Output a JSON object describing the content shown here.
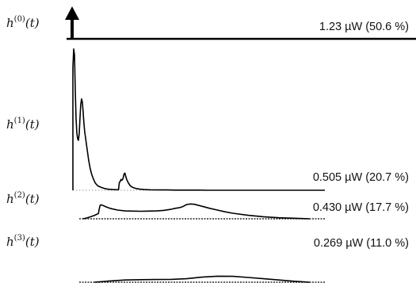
{
  "chart_data": {
    "type": "line",
    "title": "",
    "xlabel": "",
    "ylabel": "",
    "rows": [
      {
        "name": "h(0)(t)",
        "label_main": "h",
        "label_sup": "(0)",
        "label_tail": "(t)",
        "power": "1.23 µW (50.6 %)",
        "kind": "impulse",
        "x": [],
        "y": []
      },
      {
        "name": "h(1)(t)",
        "label_main": "h",
        "label_sup": "(1)",
        "label_tail": "(t)",
        "power": "0.505 µW (20.7 %)",
        "kind": "curve",
        "ymax": 1.0,
        "x": [
          0,
          0.0,
          1,
          2,
          3,
          4,
          5,
          6,
          7,
          8,
          9,
          10,
          11,
          12,
          13,
          14,
          15,
          16,
          17,
          18,
          19,
          20,
          22,
          24,
          26,
          28,
          30,
          32,
          34,
          36,
          40,
          45,
          50,
          55,
          58,
          59,
          60,
          61,
          62,
          63,
          64,
          65,
          66,
          67,
          68,
          70,
          73,
          76,
          80,
          85,
          90,
          95,
          100,
          110,
          120,
          130,
          140,
          150,
          160,
          170,
          180,
          190,
          200,
          220,
          240,
          260,
          280,
          300,
          320
        ],
        "y": [
          0,
          0.86,
          0.99,
          0.95,
          0.7,
          0.5,
          0.4,
          0.36,
          0.35,
          0.4,
          0.5,
          0.6,
          0.64,
          0.62,
          0.55,
          0.47,
          0.41,
          0.37,
          0.33,
          0.29,
          0.25,
          0.21,
          0.15,
          0.11,
          0.08,
          0.055,
          0.04,
          0.03,
          0.025,
          0.02,
          0.012,
          0.007,
          0.005,
          0.004,
          0.004,
          0.055,
          0.06,
          0.075,
          0.07,
          0.075,
          0.09,
          0.115,
          0.12,
          0.1,
          0.08,
          0.055,
          0.03,
          0.02,
          0.012,
          0.008,
          0.005,
          0.004,
          0.003,
          0.002,
          0.002,
          0.001,
          0.001,
          0.001,
          0.001,
          0,
          0,
          0,
          0,
          0,
          0,
          0,
          0,
          0,
          0
        ]
      },
      {
        "name": "h(2)(t)",
        "label_main": "h",
        "label_sup": "(2)",
        "label_tail": "(t)",
        "power": "0.430 µW (17.7 %)",
        "kind": "curve",
        "ymax": 1.0,
        "x": [
          5,
          10,
          15,
          20,
          25,
          26,
          27,
          28,
          30,
          35,
          40,
          50,
          60,
          70,
          80,
          90,
          100,
          110,
          120,
          125,
          130,
          135,
          140,
          145,
          150,
          160,
          170,
          180,
          190,
          200,
          220,
          240,
          260,
          280,
          300
        ],
        "y": [
          0.0,
          0.05,
          0.12,
          0.2,
          0.3,
          0.55,
          0.75,
          0.8,
          0.78,
          0.68,
          0.6,
          0.5,
          0.45,
          0.44,
          0.43,
          0.44,
          0.45,
          0.48,
          0.55,
          0.6,
          0.63,
          0.7,
          0.82,
          0.85,
          0.83,
          0.72,
          0.6,
          0.5,
          0.4,
          0.32,
          0.2,
          0.12,
          0.06,
          0.03,
          0.0
        ]
      },
      {
        "name": "h(3)(t)",
        "label_main": "h",
        "label_sup": "(3)",
        "label_tail": "(t)",
        "power": "0.269 µW (11.0 %)",
        "kind": "curve",
        "ymax": 1.0,
        "x": [
          20,
          40,
          60,
          80,
          100,
          120,
          140,
          160,
          180,
          200,
          220,
          240,
          260,
          280,
          300
        ],
        "y": [
          0.0,
          0.2,
          0.35,
          0.4,
          0.42,
          0.45,
          0.55,
          0.8,
          0.95,
          0.92,
          0.75,
          0.55,
          0.35,
          0.15,
          0.0
        ]
      }
    ]
  }
}
